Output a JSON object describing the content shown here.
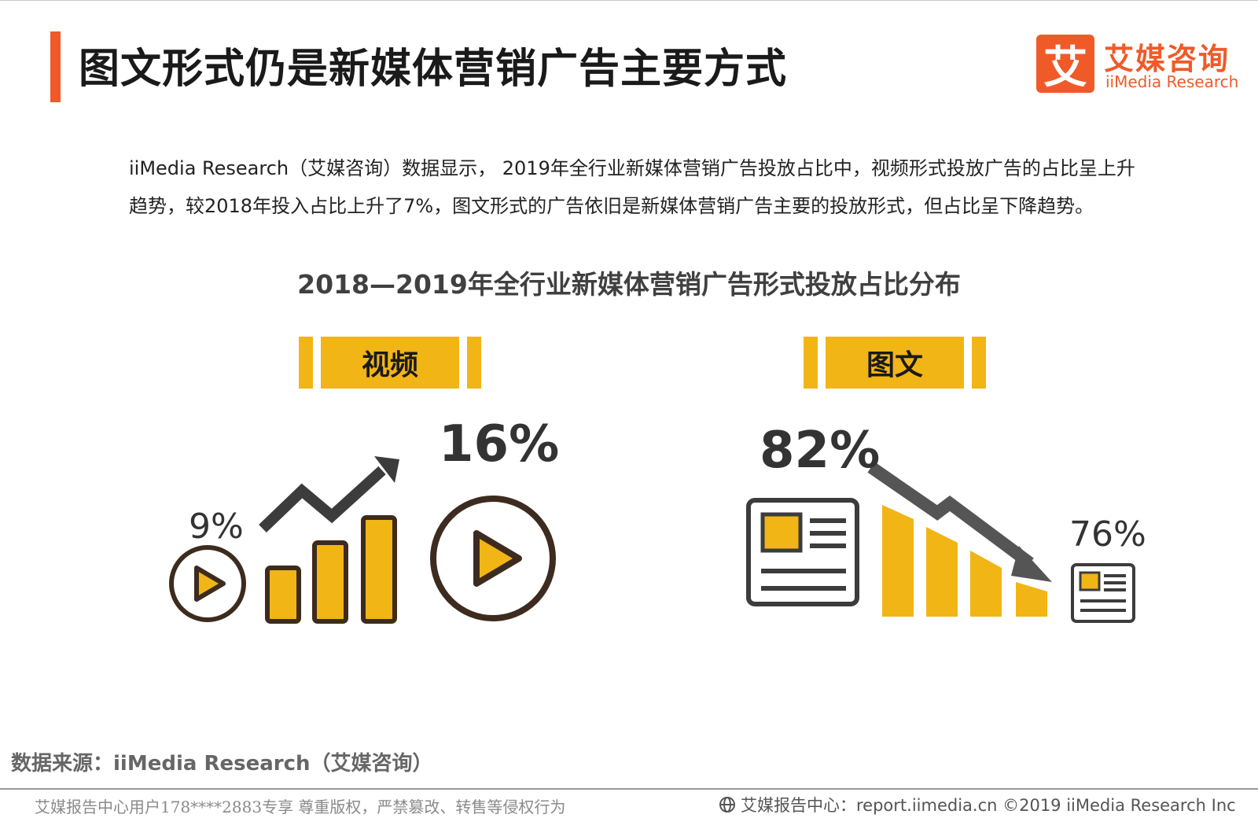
{
  "header": {
    "title": "图文形式仍是新媒体营销广告主要方式",
    "logo_mark": "艾",
    "logo_cn": "艾媒咨询",
    "logo_en": "iiMedia Research",
    "accent_color": "#f05a28"
  },
  "description": "iiMedia Research（艾媒咨询）数据显示， 2019年全行业新媒体营销广告投放占比中，视频形式投放广告的占比呈上升趋势，较2018年投入占比上升了7%，图文形式的广告依旧是新媒体营销广告主要的投放形式，但占比呈下降趋势。",
  "chart_title": "2018—2019年全行业新媒体营销广告形式投放占比分布",
  "chart_data": {
    "type": "infographic",
    "title": "2018—2019年全行业新媒体营销广告形式投放占比分布",
    "groups": [
      {
        "name": "视频",
        "values": [
          "9%",
          "16%"
        ],
        "trend": "up"
      },
      {
        "name": "图文",
        "values": [
          "82%",
          "76%"
        ],
        "trend": "down"
      }
    ],
    "colors": {
      "highlight": "#f2b516",
      "dark": "#3c3c3c",
      "ring": "#3d2b1f"
    }
  },
  "video": {
    "label": "视频",
    "pct_2018": "9%",
    "pct_2019": "16%"
  },
  "graphic": {
    "label": "图文",
    "pct_2018": "82%",
    "pct_2019": "76%"
  },
  "footer": {
    "source": "数据来源：iiMedia Research（艾媒咨询）",
    "watermark": "艾媒报告中心用户178****2883专享 尊重版权，严禁篡改、转售等侵权行为",
    "report_center": "艾媒报告中心：report.iimedia.cn   ©2019  iiMedia Research  Inc"
  }
}
